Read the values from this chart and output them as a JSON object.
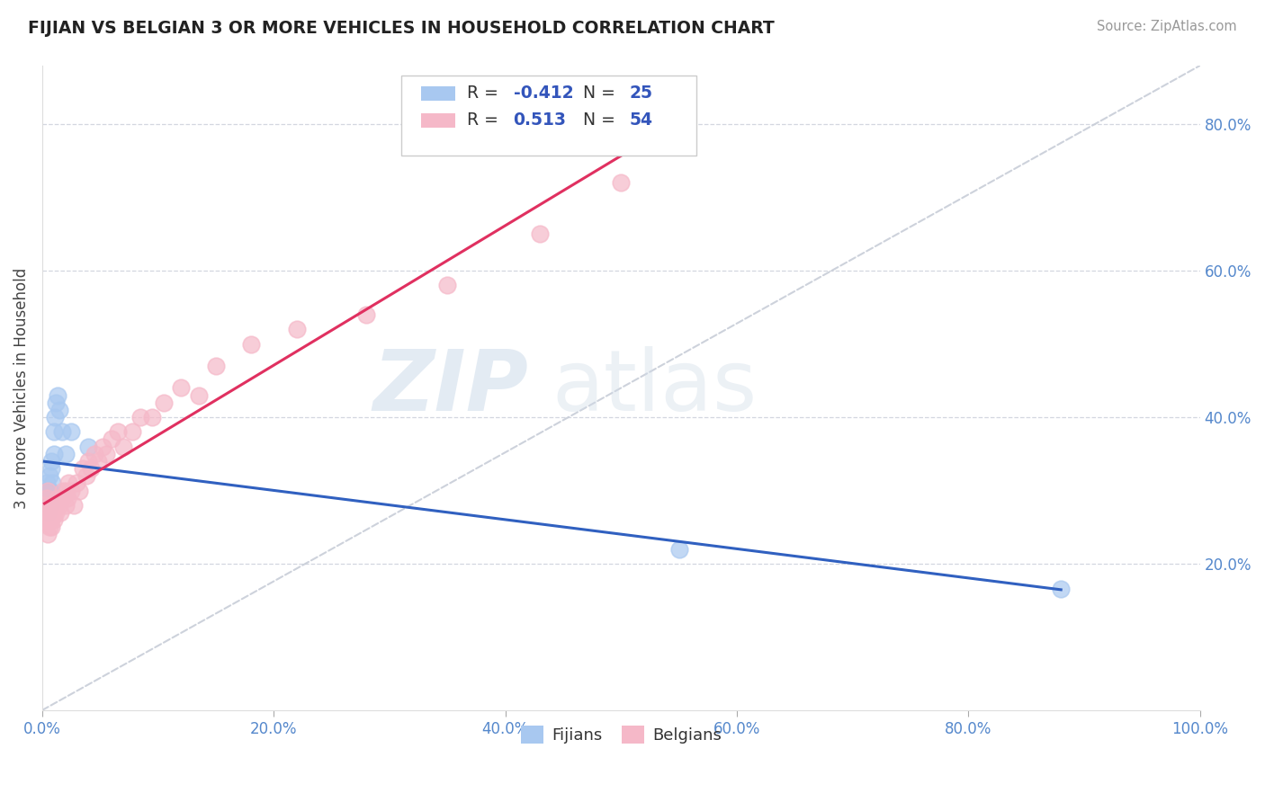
{
  "title": "FIJIAN VS BELGIAN 3 OR MORE VEHICLES IN HOUSEHOLD CORRELATION CHART",
  "source": "Source: ZipAtlas.com",
  "ylabel": "3 or more Vehicles in Household",
  "xlim": [
    0,
    1.0
  ],
  "ylim": [
    0,
    0.88
  ],
  "xticks": [
    0.0,
    0.2,
    0.4,
    0.6,
    0.8,
    1.0
  ],
  "yticks": [
    0.2,
    0.4,
    0.6,
    0.8
  ],
  "xticklabels": [
    "0.0%",
    "20.0%",
    "40.0%",
    "60.0%",
    "80.0%",
    "100.0%"
  ],
  "yticklabels": [
    "20.0%",
    "40.0%",
    "60.0%",
    "80.0%"
  ],
  "fijian_color": "#a8c8f0",
  "belgian_color": "#f5b8c8",
  "fijian_line_color": "#3060c0",
  "belgian_line_color": "#e03060",
  "reference_line_color": "#c8cdd8",
  "legend_fijian_R": "-0.412",
  "legend_fijian_N": "25",
  "legend_belgian_R": "0.513",
  "legend_belgian_N": "54",
  "legend_label_fijians": "Fijians",
  "legend_label_belgians": "Belgians",
  "watermark_zip": "ZIP",
  "watermark_atlas": "atlas",
  "fijian_x": [
    0.002,
    0.003,
    0.004,
    0.004,
    0.005,
    0.005,
    0.006,
    0.006,
    0.007,
    0.007,
    0.008,
    0.008,
    0.009,
    0.01,
    0.01,
    0.011,
    0.012,
    0.013,
    0.015,
    0.017,
    0.02,
    0.025,
    0.04,
    0.55,
    0.88
  ],
  "fijian_y": [
    0.29,
    0.3,
    0.28,
    0.31,
    0.3,
    0.27,
    0.29,
    0.32,
    0.28,
    0.3,
    0.33,
    0.34,
    0.31,
    0.35,
    0.38,
    0.4,
    0.42,
    0.43,
    0.41,
    0.38,
    0.35,
    0.38,
    0.36,
    0.22,
    0.165
  ],
  "belgian_x": [
    0.002,
    0.003,
    0.004,
    0.004,
    0.005,
    0.005,
    0.006,
    0.006,
    0.007,
    0.007,
    0.008,
    0.008,
    0.009,
    0.01,
    0.01,
    0.011,
    0.012,
    0.013,
    0.015,
    0.016,
    0.017,
    0.018,
    0.02,
    0.021,
    0.022,
    0.023,
    0.025,
    0.027,
    0.03,
    0.032,
    0.035,
    0.038,
    0.04,
    0.042,
    0.045,
    0.048,
    0.052,
    0.055,
    0.06,
    0.065,
    0.07,
    0.078,
    0.085,
    0.095,
    0.105,
    0.12,
    0.135,
    0.15,
    0.18,
    0.22,
    0.28,
    0.35,
    0.43,
    0.5
  ],
  "belgian_y": [
    0.28,
    0.26,
    0.27,
    0.29,
    0.3,
    0.24,
    0.25,
    0.27,
    0.26,
    0.28,
    0.25,
    0.26,
    0.27,
    0.26,
    0.27,
    0.28,
    0.27,
    0.29,
    0.28,
    0.27,
    0.29,
    0.3,
    0.28,
    0.3,
    0.29,
    0.31,
    0.3,
    0.28,
    0.31,
    0.3,
    0.33,
    0.32,
    0.34,
    0.33,
    0.35,
    0.34,
    0.36,
    0.35,
    0.37,
    0.38,
    0.36,
    0.38,
    0.4,
    0.4,
    0.42,
    0.44,
    0.43,
    0.47,
    0.5,
    0.52,
    0.54,
    0.58,
    0.65,
    0.72
  ]
}
